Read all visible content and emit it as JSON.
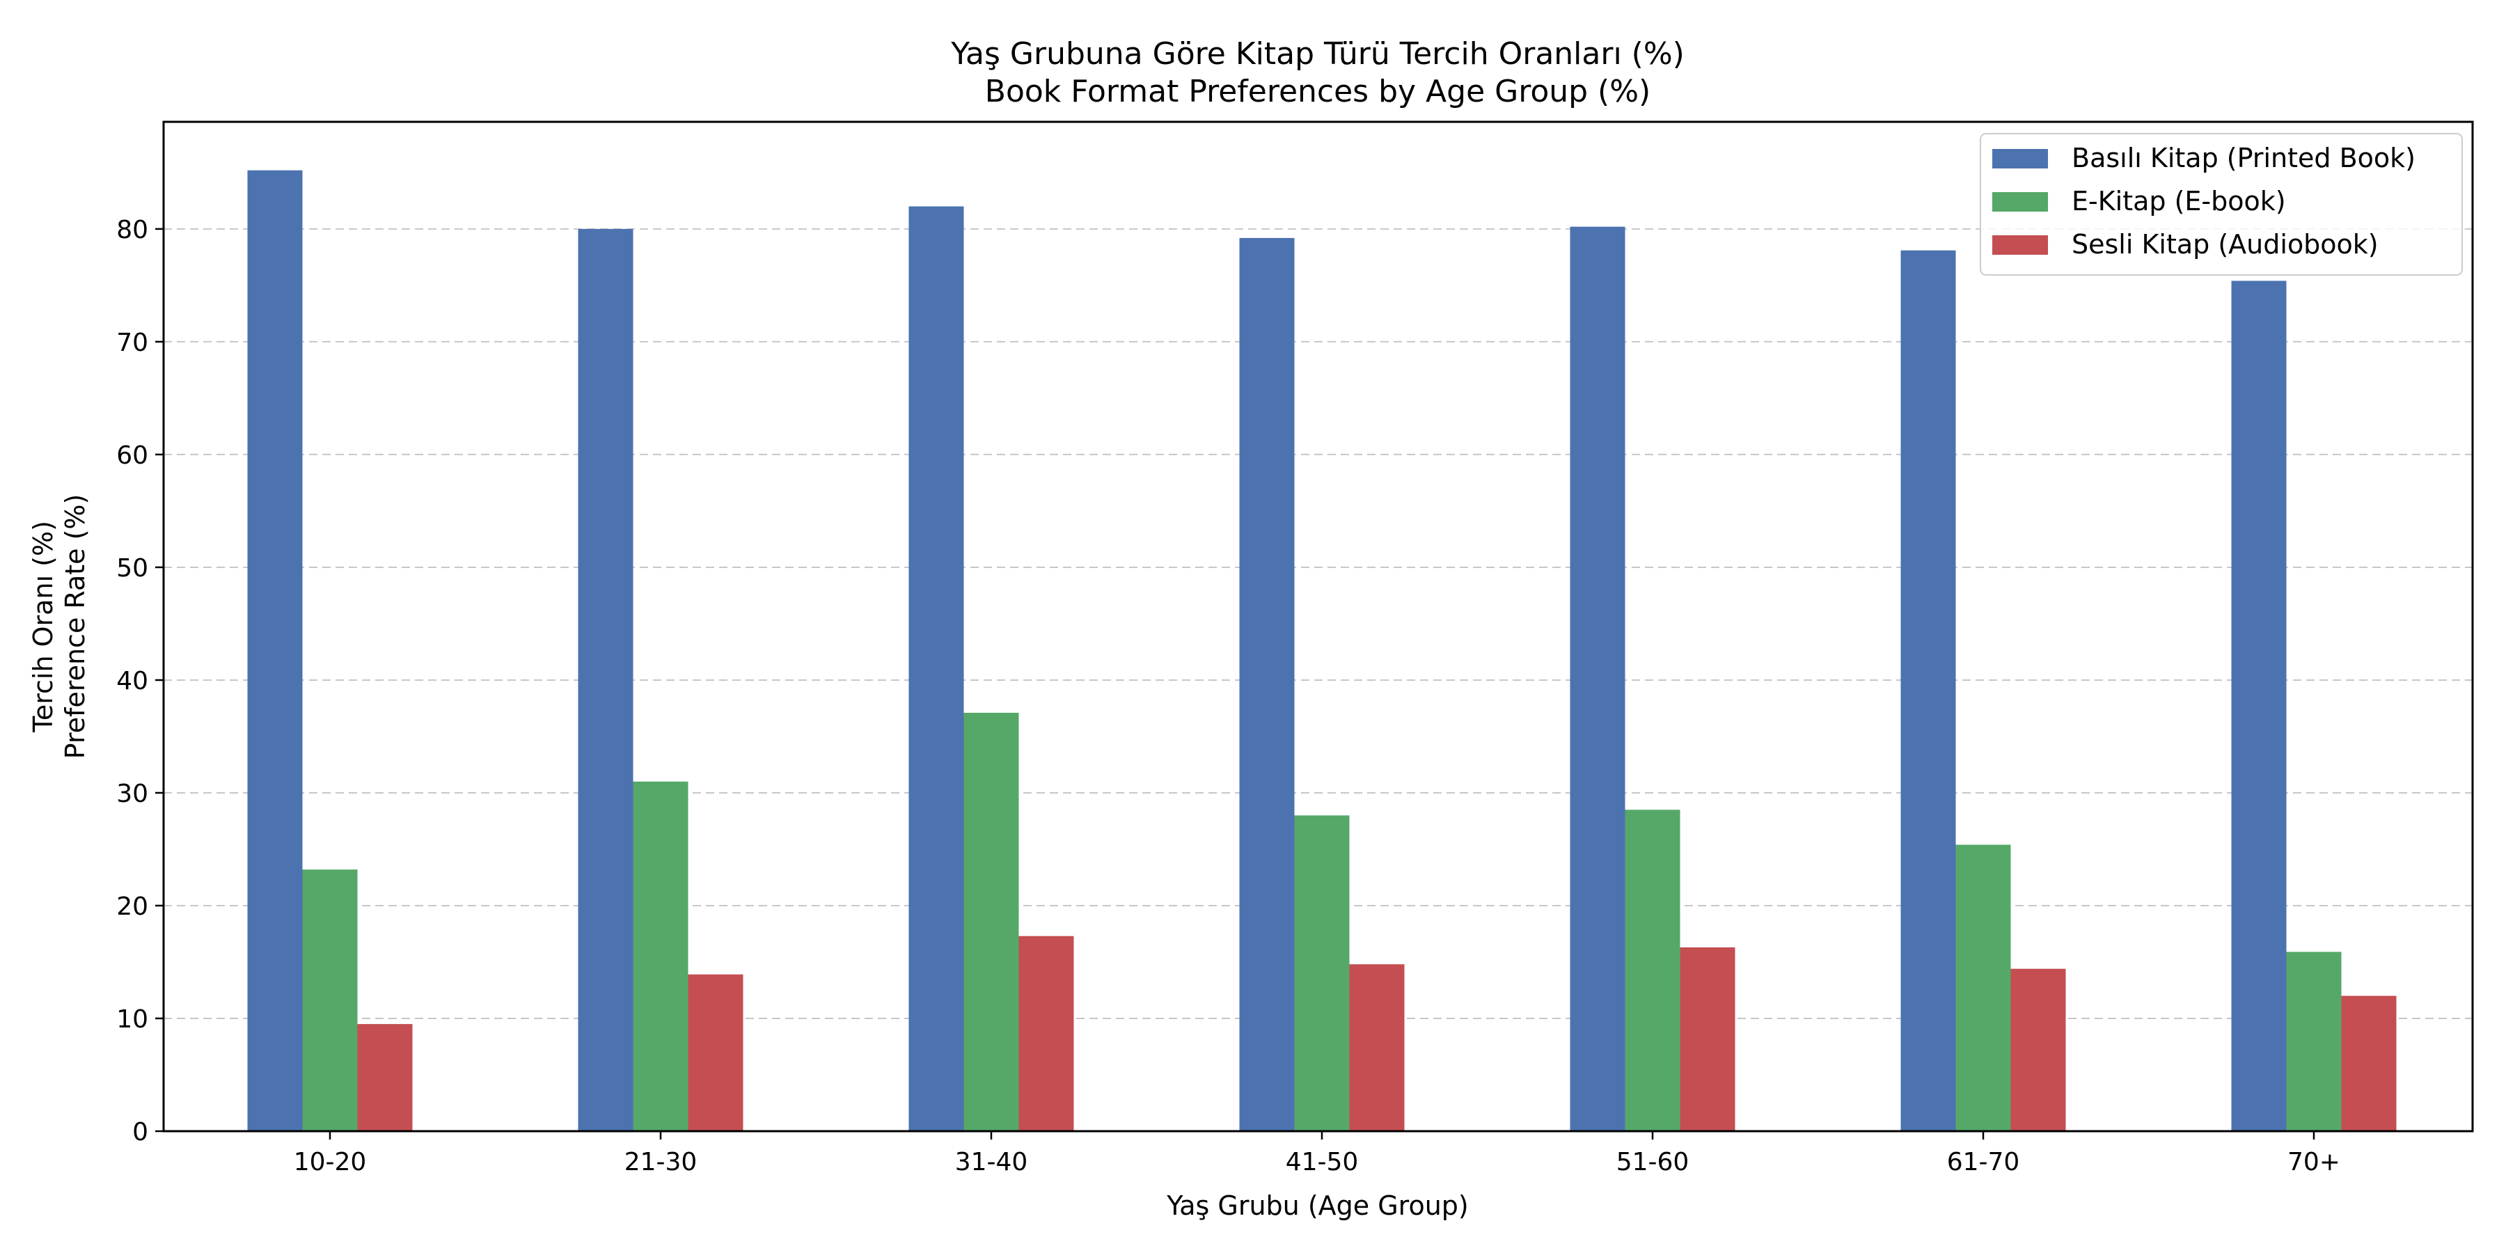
{
  "chart_data": {
    "type": "bar",
    "title": "Yaş Grubuna Göre Kitap Türü Tercih Oranları (%)",
    "subtitle": "Book Format Preferences by Age Group (%)",
    "xlabel": "Yaş Grubu (Age Group)",
    "ylabel": "Tercih Oranı (%)",
    "ylabel2": "Preference Rate (%)",
    "categories": [
      "10-20",
      "21-30",
      "31-40",
      "41-50",
      "51-60",
      "61-70",
      "70+"
    ],
    "series": [
      {
        "name": "Basılı Kitap (Printed Book)",
        "color": "#4c72b0",
        "values": [
          85.2,
          80.0,
          82.0,
          79.2,
          80.2,
          78.1,
          75.4
        ]
      },
      {
        "name": "E-Kitap (E-book)",
        "color": "#55a868",
        "values": [
          23.2,
          31.0,
          37.1,
          28.0,
          28.5,
          25.4,
          15.9
        ]
      },
      {
        "name": "Sesli Kitap (Audiobook)",
        "color": "#c44e52",
        "values": [
          9.5,
          13.9,
          17.3,
          14.8,
          16.3,
          14.4,
          12.0
        ]
      }
    ],
    "ylim": [
      0,
      89.5
    ],
    "yticks": [
      0,
      10,
      20,
      30,
      40,
      50,
      60,
      70,
      80
    ],
    "grid": "y-dashed",
    "legend_position": "top-right"
  }
}
